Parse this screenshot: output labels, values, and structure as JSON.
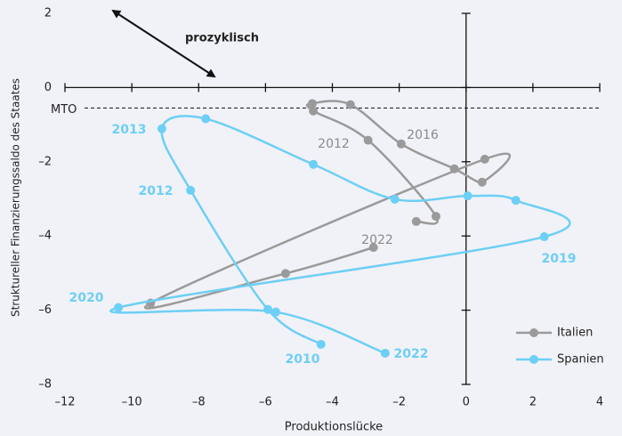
{
  "chart_data": {
    "type": "line",
    "x_label": "Produktionslücke",
    "y_label": "Struktureller Finanzierungssaldo des Staates",
    "xlim": [
      -12,
      4
    ],
    "ylim": [
      -8,
      2
    ],
    "xticks": [
      {
        "value": -12,
        "label": "–12"
      },
      {
        "value": -10,
        "label": "–10"
      },
      {
        "value": -8,
        "label": "–8"
      },
      {
        "value": -6,
        "label": "–6"
      },
      {
        "value": -4,
        "label": "–4"
      },
      {
        "value": -2,
        "label": "–2"
      },
      0,
      2,
      4
    ],
    "yticks": [
      {
        "value": -8,
        "label": "–8"
      },
      {
        "value": -6,
        "label": "–6"
      },
      {
        "value": -4,
        "label": "–4"
      },
      {
        "value": -2,
        "label": "–2"
      },
      0,
      2
    ],
    "reference_line": {
      "label": "MTO",
      "value": -0.55
    },
    "arrow_label": "prozyklisch",
    "legend": "lower right",
    "series": [
      {
        "name": "Italien",
        "color": "#9a9a9a",
        "x": [
          -1.49,
          -0.9,
          -2.93,
          -4.57,
          -4.6,
          -3.46,
          -1.94,
          -0.35,
          0.48,
          0.56,
          -9.44,
          -5.4,
          -2.77
        ],
        "values": [
          -3.61,
          -3.47,
          -1.42,
          -0.63,
          -0.43,
          -0.46,
          -1.52,
          -2.19,
          -2.55,
          -1.93,
          -5.81,
          -5.01,
          -4.31
        ],
        "year_labels": [
          "2012",
          "2016",
          "2022"
        ]
      },
      {
        "name": "Spanien",
        "color": "#6dcff6",
        "x": [
          -4.34,
          -5.93,
          -8.24,
          -9.1,
          -7.79,
          -4.57,
          -2.13,
          0.05,
          1.49,
          2.34,
          -10.4,
          -5.69,
          -2.42
        ],
        "values": [
          -6.92,
          -5.98,
          -2.77,
          -1.11,
          -0.84,
          -2.07,
          -3.01,
          -2.92,
          -3.04,
          -4.02,
          -5.93,
          -6.05,
          -7.16
        ],
        "year_labels": [
          "2013",
          "2012",
          "2020",
          "2010",
          "2022",
          "2019"
        ]
      }
    ]
  }
}
